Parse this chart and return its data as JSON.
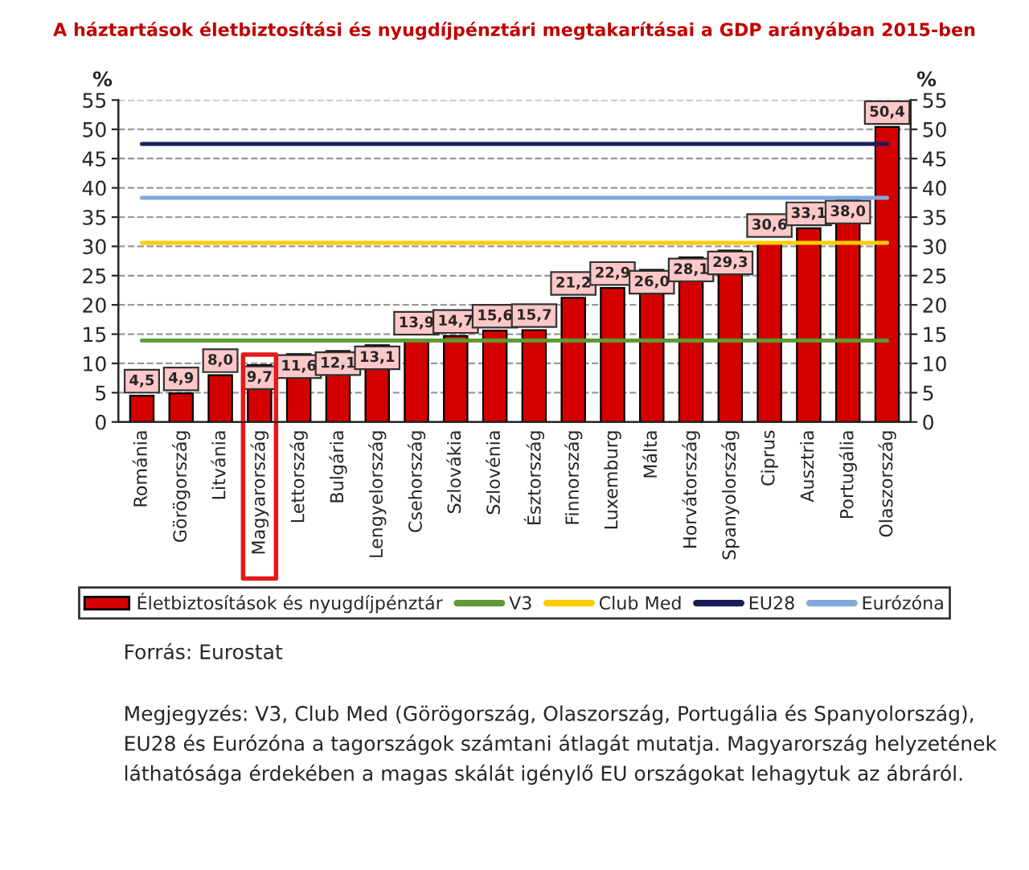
{
  "chart_data": {
    "type": "bar",
    "title": "A háztartások életbiztosítási és nyugdíjpénztári megtakarításai a GDP arányában 2015-ben",
    "ylabel": "%",
    "y2label": "%",
    "categories": [
      "Románia",
      "Görögország",
      "Litvánia",
      "Magyarország",
      "Lettország",
      "Bulgária",
      "Lengyelország",
      "Csehország",
      "Szlovákia",
      "Szlovénia",
      "Észtország",
      "Finnország",
      "Luxemburg",
      "Málta",
      "Horvátország",
      "Spanyolország",
      "Ciprus",
      "Ausztria",
      "Portugália",
      "Olaszország"
    ],
    "series": [
      {
        "name": "Életbiztosítások és nyugdíjpénztár",
        "color": "#d40000",
        "values": [
          4.5,
          4.9,
          8.0,
          9.7,
          11.6,
          12.1,
          13.1,
          13.9,
          14.7,
          15.6,
          15.7,
          21.2,
          22.9,
          26.0,
          28.1,
          29.3,
          30.6,
          33.1,
          38.0,
          50.4
        ],
        "value_labels": [
          "4,5",
          "4,9",
          "8,0",
          "9,7",
          "11,6",
          "12,1",
          "13,1",
          "13,9",
          "14,7",
          "15,6",
          "15,7",
          "21,2",
          "22,9",
          "26,0",
          "28,1",
          "29,3",
          "30,6",
          "33,1",
          "38,0",
          "50,4"
        ]
      },
      {
        "name": "V3",
        "type": "line",
        "color": "#5f9a32",
        "values": [
          13.9,
          13.9,
          13.9,
          13.9,
          13.9,
          13.9,
          13.9,
          13.9,
          13.9,
          13.9,
          13.9,
          13.9,
          13.9,
          13.9,
          13.9,
          13.9,
          13.9,
          13.9,
          13.9,
          13.9
        ]
      },
      {
        "name": "Club Med",
        "type": "line",
        "color": "#ffcc00",
        "values": [
          30.6,
          30.6,
          30.6,
          30.6,
          30.6,
          30.6,
          30.6,
          30.6,
          30.6,
          30.6,
          30.6,
          30.6,
          30.6,
          30.6,
          30.6,
          30.6,
          30.6,
          30.6,
          30.6,
          30.6
        ]
      },
      {
        "name": "EU28",
        "type": "line",
        "color": "#1c1c5a",
        "values": [
          47.5,
          47.5,
          47.5,
          47.5,
          47.5,
          47.5,
          47.5,
          47.5,
          47.5,
          47.5,
          47.5,
          47.5,
          47.5,
          47.5,
          47.5,
          47.5,
          47.5,
          47.5,
          47.5,
          47.5
        ]
      },
      {
        "name": "Eurózóna",
        "type": "line",
        "color": "#82a9dc",
        "values": [
          38.3,
          38.3,
          38.3,
          38.3,
          38.3,
          38.3,
          38.3,
          38.3,
          38.3,
          38.3,
          38.3,
          38.3,
          38.3,
          38.3,
          38.3,
          38.3,
          38.3,
          38.3,
          38.3,
          38.3
        ]
      }
    ],
    "ylim": [
      0,
      55
    ],
    "yticks": [
      0,
      5,
      10,
      15,
      20,
      25,
      30,
      35,
      40,
      45,
      50,
      55
    ],
    "y2lim": [
      0,
      55
    ],
    "y2ticks": [
      0,
      5,
      10,
      15,
      20,
      25,
      30,
      35,
      40,
      45,
      50,
      55
    ],
    "grid": "y",
    "legend": "bottom",
    "annotations": [
      "Forrás: Eurostat",
      "Megjegyzés: V3, Club Med (Görögország, Olaszország, Portugália és Spanyolország), EU28 és Eurózóna a tagországok számtani átlagát mutatja. Magyarország helyzetének láthatósága érdekében a magas skálát igénylő EU országokat lehagytuk az ábráról."
    ]
  }
}
